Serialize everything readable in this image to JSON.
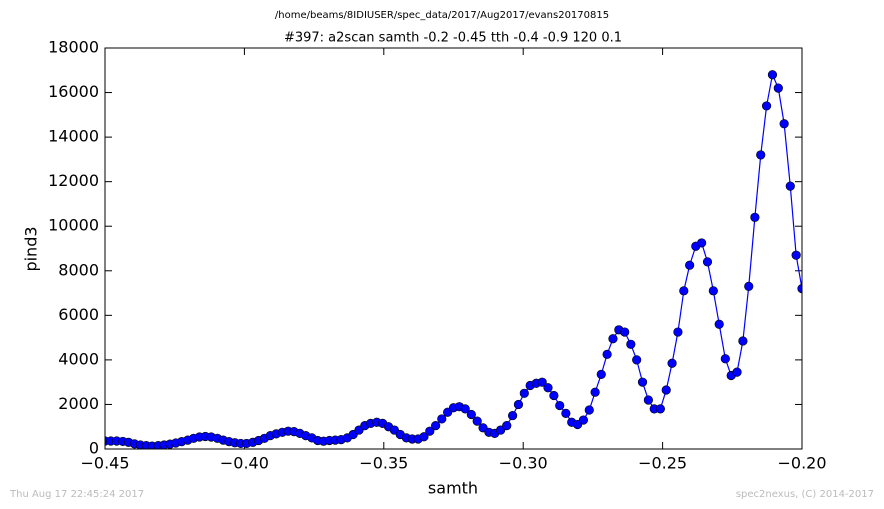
{
  "chart_data": {
    "type": "line",
    "subtitle": "/home/beams/8IDIUSER/spec_data/2017/Aug2017/evans20170815",
    "title": "#397: a2scan  samth -0.2 -0.45  tth -0.4 -0.9  120 0.1",
    "xlabel": "samth",
    "ylabel": "pind3",
    "x": [
      -0.45,
      -0.4479,
      -0.4458,
      -0.4436,
      -0.4415,
      -0.4394,
      -0.4373,
      -0.4352,
      -0.4331,
      -0.4309,
      -0.4288,
      -0.4267,
      -0.4246,
      -0.4225,
      -0.4203,
      -0.4182,
      -0.4161,
      -0.414,
      -0.4119,
      -0.4097,
      -0.4076,
      -0.4055,
      -0.4034,
      -0.4013,
      -0.3992,
      -0.397,
      -0.3949,
      -0.3928,
      -0.3907,
      -0.3886,
      -0.3864,
      -0.3843,
      -0.3822,
      -0.3801,
      -0.378,
      -0.3758,
      -0.3737,
      -0.3716,
      -0.3695,
      -0.3674,
      -0.3653,
      -0.3631,
      -0.361,
      -0.3589,
      -0.3568,
      -0.3547,
      -0.3525,
      -0.3504,
      -0.3483,
      -0.3462,
      -0.3441,
      -0.3419,
      -0.3398,
      -0.3377,
      -0.3356,
      -0.3335,
      -0.3314,
      -0.3292,
      -0.3271,
      -0.325,
      -0.3229,
      -0.3208,
      -0.3186,
      -0.3165,
      -0.3144,
      -0.3123,
      -0.3102,
      -0.3081,
      -0.3059,
      -0.3038,
      -0.3017,
      -0.2996,
      -0.2975,
      -0.2953,
      -0.2932,
      -0.2911,
      -0.289,
      -0.2869,
      -0.2847,
      -0.2826,
      -0.2805,
      -0.2784,
      -0.2763,
      -0.2742,
      -0.272,
      -0.2699,
      -0.2678,
      -0.2657,
      -0.2636,
      -0.2614,
      -0.2593,
      -0.2572,
      -0.2551,
      -0.253,
      -0.2508,
      -0.2487,
      -0.2466,
      -0.2445,
      -0.2424,
      -0.2403,
      -0.2381,
      -0.236,
      -0.2339,
      -0.2318,
      -0.2297,
      -0.2275,
      -0.2254,
      -0.2233,
      -0.2212,
      -0.2191,
      -0.2169,
      -0.2148,
      -0.2127,
      -0.2106,
      -0.2085,
      -0.2064,
      -0.2042,
      -0.2021,
      -0.2
    ],
    "series": [
      {
        "name": "pind3",
        "color": "#0000ff",
        "values": [
          360,
          360,
          360,
          340,
          300,
          230,
          180,
          150,
          130,
          150,
          180,
          220,
          270,
          330,
          400,
          480,
          540,
          560,
          540,
          480,
          400,
          330,
          280,
          250,
          250,
          300,
          380,
          480,
          600,
          680,
          750,
          800,
          780,
          700,
          600,
          500,
          380,
          350,
          380,
          400,
          420,
          500,
          650,
          850,
          1050,
          1150,
          1200,
          1150,
          1000,
          850,
          650,
          500,
          450,
          450,
          550,
          800,
          1050,
          1350,
          1650,
          1850,
          1900,
          1800,
          1550,
          1250,
          950,
          750,
          700,
          850,
          1050,
          1500,
          2000,
          2500,
          2850,
          2950,
          3000,
          2750,
          2400,
          1950,
          1600,
          1200,
          1100,
          1300,
          1750,
          2550,
          3350,
          4250,
          4950,
          5350,
          5250,
          4700,
          4000,
          3000,
          2200,
          1800,
          1800,
          2650,
          3850,
          5250,
          7100,
          8250,
          9100,
          9250,
          8400,
          7100,
          5600,
          4050,
          3300,
          3450,
          4850,
          7300,
          10400,
          13200,
          15400,
          16800,
          16200,
          14600,
          11800,
          8700,
          7200
        ]
      }
    ],
    "xlim": [
      -0.45,
      -0.2
    ],
    "xticks": [
      {
        "value": -0.45,
        "label": "−0.45"
      },
      {
        "value": -0.4,
        "label": "−0.40"
      },
      {
        "value": -0.35,
        "label": "−0.35"
      },
      {
        "value": -0.3,
        "label": "−0.30"
      },
      {
        "value": -0.25,
        "label": "−0.25"
      },
      {
        "value": -0.2,
        "label": "−0.20"
      }
    ],
    "ylim": [
      0,
      18000
    ],
    "yticks": [
      0,
      2000,
      4000,
      6000,
      8000,
      10000,
      12000,
      14000,
      16000,
      18000
    ],
    "grid": false
  },
  "footer": {
    "left": "Thu Aug 17 22:45:24 2017",
    "right": "spec2nexus, (C) 2014-2017"
  }
}
